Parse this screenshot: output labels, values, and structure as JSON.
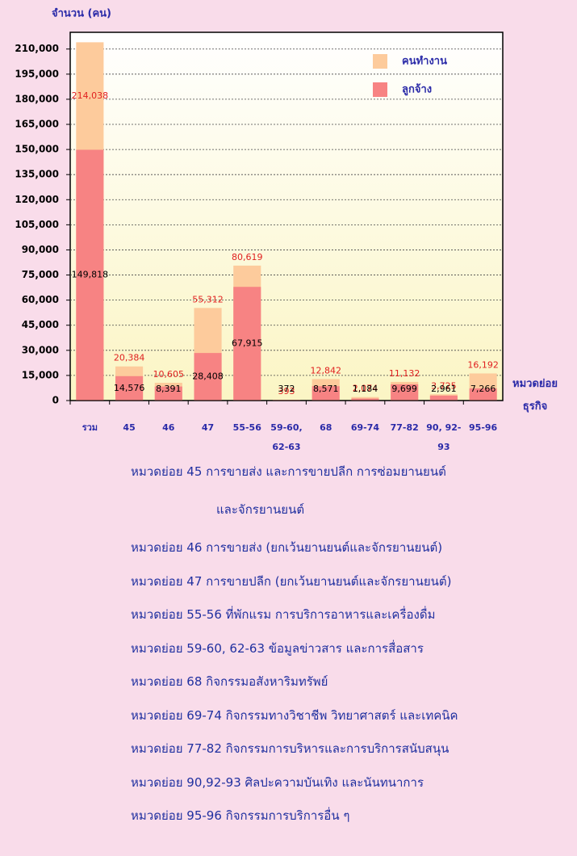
{
  "chart_data": {
    "type": "overlap_bar",
    "y_axis_label": "จำนวน (คน)",
    "x_axis_label": "หมวดย่อย ธุรกิจ",
    "categories": [
      "รวม",
      "45",
      "46",
      "47",
      "55-56",
      "59-60, 62-63",
      "68",
      "69-74",
      "77-82",
      "90, 92-93",
      "95-96"
    ],
    "series": [
      {
        "name": "คนทำงาน",
        "color": "#fdcb9c",
        "values": [
          214038,
          20384,
          10605,
          55312,
          80619,
          393,
          12842,
          2074,
          11132,
          3725,
          16192
        ],
        "value_labels": [
          "214,038",
          "20,384",
          "10,605",
          "55,312",
          "80,619",
          "393",
          "12,842",
          "2,074",
          "11,132",
          "3,725",
          "16,192"
        ]
      },
      {
        "name": "ลูกจ้าง",
        "color": "#f78383",
        "values": [
          149818,
          14576,
          8391,
          28408,
          67915,
          372,
          8571,
          1184,
          9699,
          2961,
          7266
        ],
        "value_labels": [
          "149,818",
          "14,576",
          "8,391",
          "28,408",
          "67,915",
          "372",
          "8,571",
          "1,184",
          "9,699",
          "2,961",
          "7,266"
        ]
      }
    ],
    "ylim": [
      0,
      220000
    ],
    "yticks": [
      0,
      {
        "value": 15000,
        "label": "15,000"
      },
      {
        "value": 30000,
        "label": "30,000"
      },
      {
        "value": 45000,
        "label": "45,000"
      },
      {
        "value": 60000,
        "label": "60,000"
      },
      {
        "value": 75000,
        "label": "75,000"
      },
      {
        "value": 90000,
        "label": "90,000"
      },
      {
        "value": 105000,
        "label": "105,000"
      },
      {
        "value": 120000,
        "label": "120,000"
      },
      {
        "value": 135000,
        "label": "135,000"
      },
      {
        "value": 150000,
        "label": "150,000"
      },
      {
        "value": 165000,
        "label": "165,000"
      },
      {
        "value": 180000,
        "label": "180,000"
      },
      {
        "value": 195000,
        "label": "195,000"
      },
      {
        "value": 210000,
        "label": "210,000"
      }
    ],
    "grid": true,
    "legend": "upper right"
  },
  "notes": [
    "หมวดย่อย  45 การขายส่ง และการขายปลีก การซ่อมยานยนต์",
    "และจักรยานยนต์",
    "หมวดย่อย  46  การขายส่ง (ยกเว้นยานยนต์และจักรยานยนต์)",
    "หมวดย่อย  47  การขายปลีก (ยกเว้นยานยนต์และจักรยานยนต์)",
    "หมวดย่อย 55-56 ที่พักแรม การบริการอาหารและเครื่องดื่ม",
    "หมวดย่อย 59-60, 62-63 ข้อมูลข่าวสาร และการสื่อสาร",
    "หมวดย่อย 68 กิจกรรมอสังหาริมทรัพย์",
    "หมวดย่อย 69-74 กิจกรรมทางวิชาชีพ วิทยาศาสตร์ และเทคนิค",
    "หมวดย่อย 77-82 กิจกรรมการบริหารและการบริการสนับสนุน",
    "หมวดย่อย 90,92-93 ศิลปะความบันเทิง และนันทนาการ",
    "หมวดย่อย 95-96 กิจกรรมการบริการอื่น ๆ"
  ]
}
